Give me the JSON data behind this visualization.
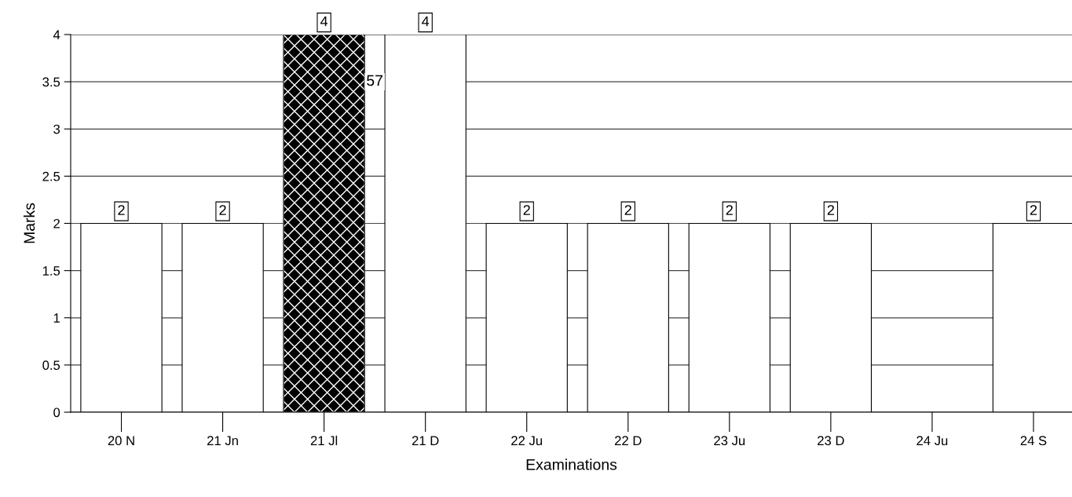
{
  "chart_data": {
    "type": "bar",
    "xlabel": "Examinations",
    "ylabel": "Marks",
    "categories": [
      "20 N",
      "21 Jn",
      "21 Jl",
      "21 D",
      "22 Ju",
      "22 D",
      "23 Ju",
      "23 D",
      "24 Ju",
      "24 S"
    ],
    "values": [
      2,
      2,
      4,
      4,
      2,
      2,
      2,
      2,
      null,
      2
    ],
    "colors": [
      "#ffffff",
      "#ffffff",
      "#000000",
      "#ffffff",
      "#ffffff",
      "#ffffff",
      "#ffffff",
      "#ffffff",
      "#ffffff",
      "#ffffff"
    ],
    "ylim": [
      0,
      4
    ],
    "yticks": [
      0,
      0.5,
      1,
      1.5,
      2,
      2.5,
      3,
      3.5,
      4
    ],
    "grid": "y",
    "data_labels": true,
    "annotations": [
      "57"
    ]
  }
}
